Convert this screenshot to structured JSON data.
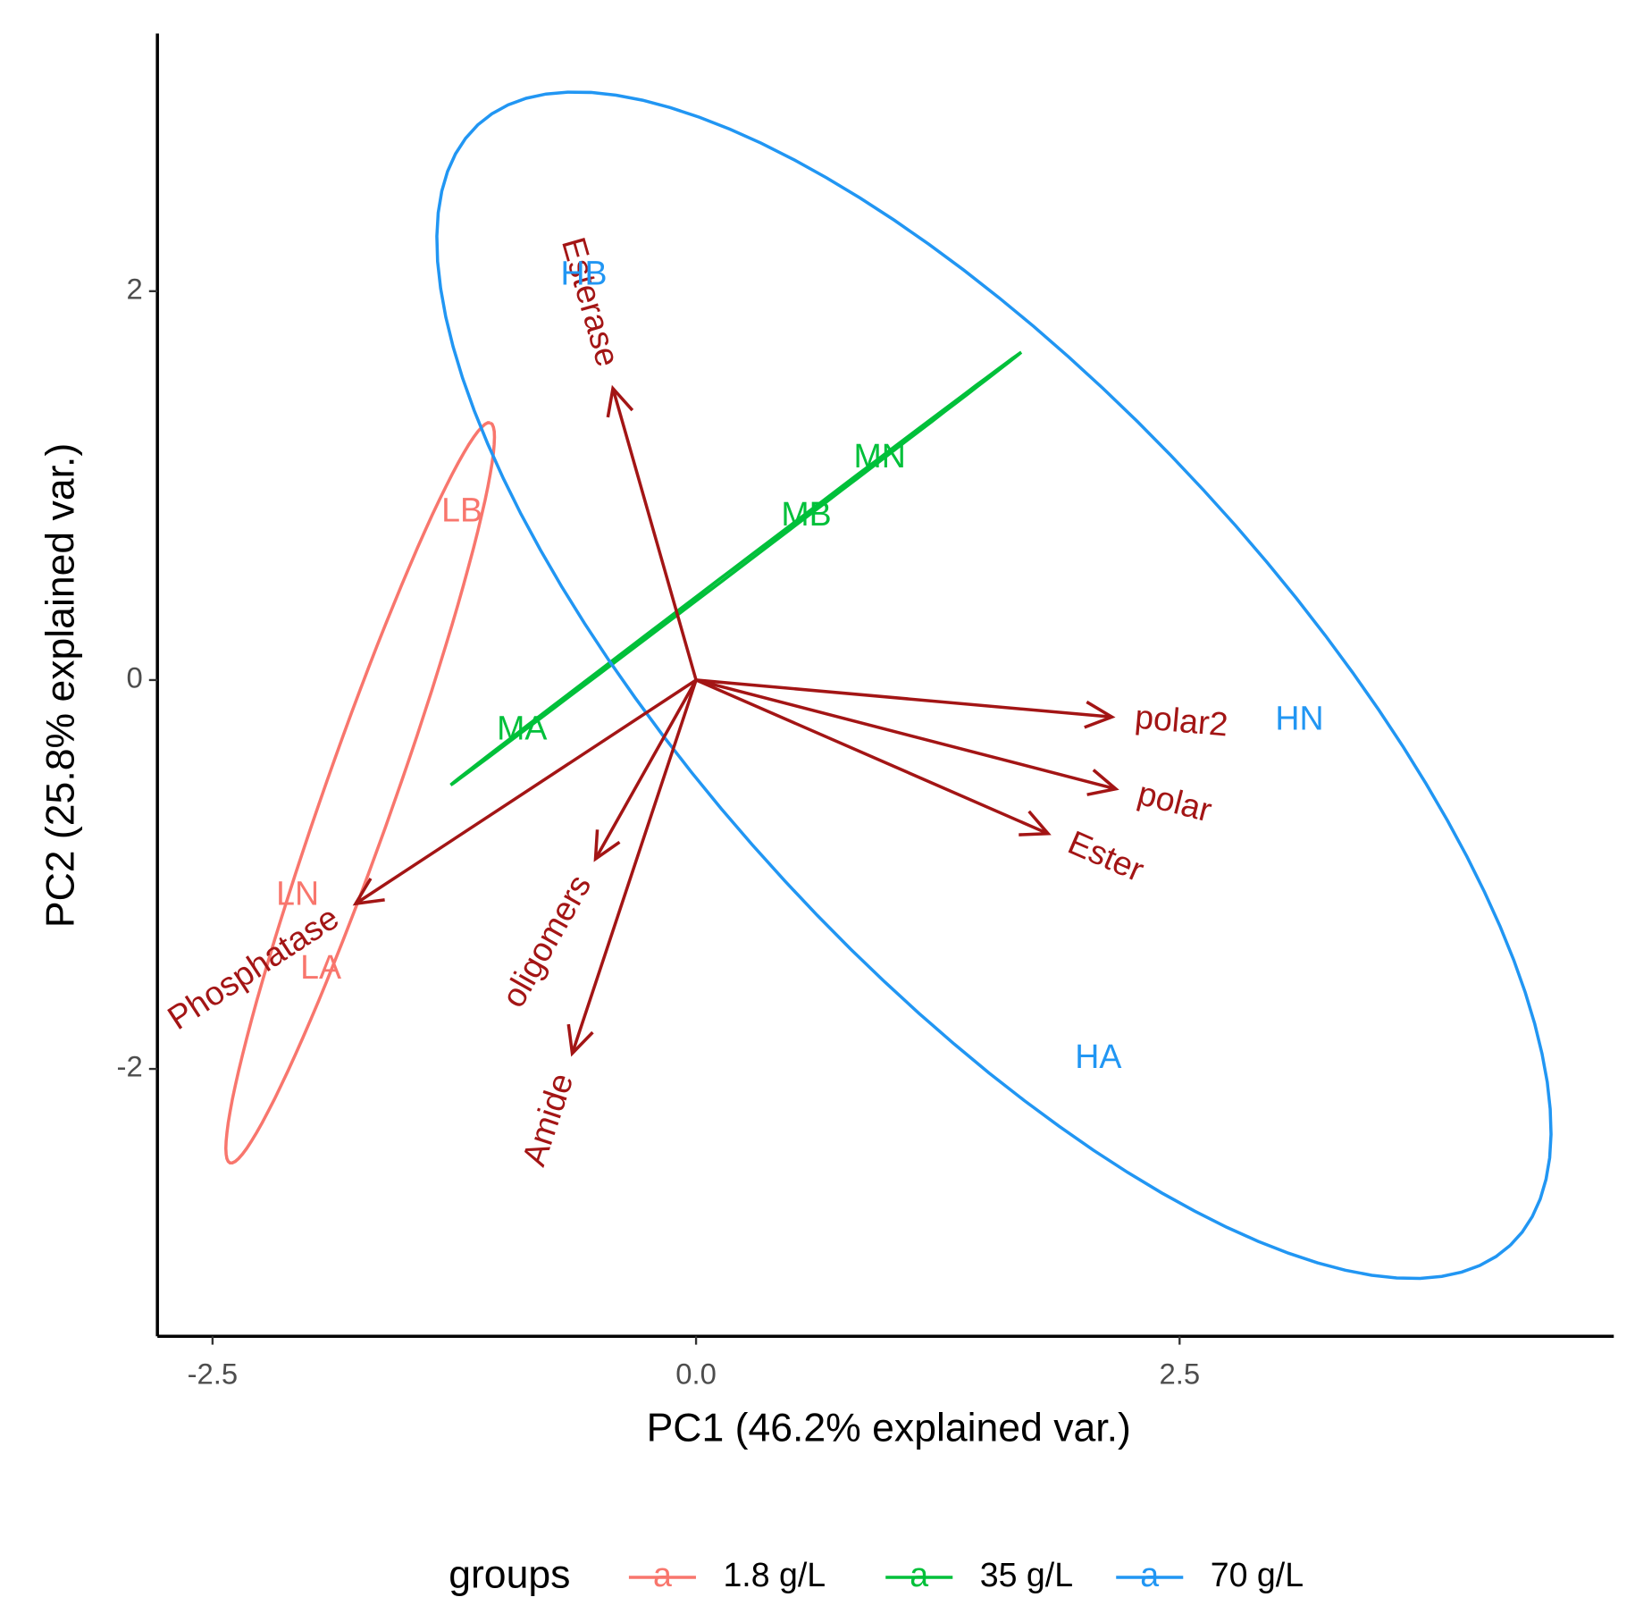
{
  "chart_data": {
    "type": "biplot",
    "xlabel": "PC1 (46.2% explained var.)",
    "ylabel": "PC2 (25.8% explained var.)",
    "xlim": [
      -2.785,
      4.745
    ],
    "ylim": [
      -3.375,
      3.325
    ],
    "xticks": [
      -2.5,
      {
        "value": 0,
        "label": "0.0"
      },
      2.5
    ],
    "yticks": [
      -2,
      0,
      2
    ],
    "legend_title": "groups",
    "legend_glyph": "a",
    "legend_position": "bottom",
    "series": [
      {
        "name": "1.8 g/L",
        "color": "#f8766d",
        "labels": [
          "LB",
          "LN",
          "LA"
        ],
        "x": [
          -1.21,
          -2.06,
          -1.94
        ],
        "y": [
          0.86,
          -1.11,
          -1.49
        ]
      },
      {
        "name": "35 g/L",
        "color": "#00c03a",
        "labels": [
          "MA",
          "MB",
          "MN"
        ],
        "x": [
          -0.9,
          0.57,
          0.95
        ],
        "y": [
          -0.26,
          0.84,
          1.14
        ]
      },
      {
        "name": "70 g/L",
        "color": "#2196f3",
        "labels": [
          "HB",
          "HN",
          "HA"
        ],
        "x": [
          -0.58,
          3.12,
          2.08
        ],
        "y": [
          2.08,
          -0.21,
          -1.95
        ]
      }
    ],
    "loadings_color": "#a31515",
    "loadings": [
      {
        "name": "Esterase",
        "x": -0.43,
        "y": 1.5
      },
      {
        "name": "polar2",
        "x": 2.15,
        "y": -0.19
      },
      {
        "name": "polar",
        "x": 2.17,
        "y": -0.56
      },
      {
        "name": "Ester",
        "x": 1.82,
        "y": -0.79
      },
      {
        "name": "oligomers",
        "x": -0.52,
        "y": -0.92
      },
      {
        "name": "Amide",
        "x": -0.64,
        "y": -1.92
      },
      {
        "name": "Phosphatase",
        "x": -1.76,
        "y": -1.15
      }
    ]
  }
}
